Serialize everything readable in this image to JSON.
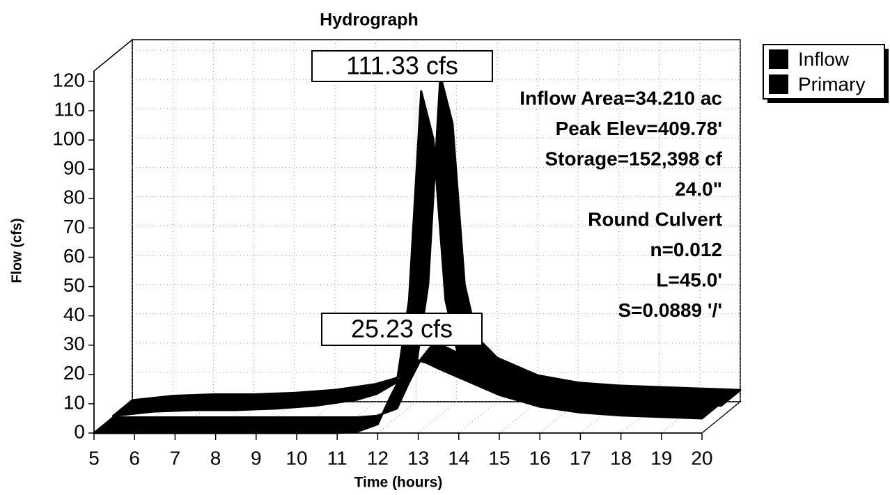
{
  "chart_data": {
    "type": "line3d",
    "title": "Hydrograph",
    "xlabel": "Time  (hours)",
    "ylabel": "Flow  (cfs)",
    "x": [
      5,
      6,
      7,
      8,
      9,
      10,
      11,
      11.5,
      12,
      12.3,
      12.6,
      12.9,
      13.2,
      13.5,
      14,
      15,
      16,
      17,
      18,
      19,
      20
    ],
    "series": [
      {
        "name": "Inflow",
        "color": "#000000",
        "values": [
          0.5,
          2,
          2.5,
          2.5,
          3,
          4,
          6,
          8,
          12,
          40,
          111.33,
          95,
          40,
          22,
          15,
          9,
          6.5,
          5.5,
          5,
          4.5,
          4
        ]
      },
      {
        "name": "Primary",
        "color": "#000000",
        "values": [
          0,
          0,
          0,
          0,
          0,
          0,
          0,
          0.5,
          3,
          12,
          20,
          25.23,
          24,
          22,
          19,
          13,
          9,
          7,
          6,
          5.5,
          5
        ]
      }
    ],
    "peak_labels": [
      "111.33 cfs",
      "25.23 cfs"
    ],
    "info": [
      "Inflow Area=34.210 ac",
      "Peak Elev=409.78'",
      "Storage=152,398 cf",
      "24.0\"",
      "Round Culvert",
      "n=0.012",
      "L=45.0'",
      "S=0.0889 '/'"
    ],
    "xlim": [
      5,
      20
    ],
    "xticks": [
      5,
      6,
      7,
      8,
      9,
      10,
      11,
      12,
      13,
      14,
      15,
      16,
      17,
      18,
      19,
      20
    ],
    "ylim": [
      0,
      120
    ],
    "yticks": [
      0,
      10,
      20,
      30,
      40,
      50,
      60,
      70,
      80,
      90,
      100,
      110,
      120
    ],
    "grid": true,
    "legend": "right"
  }
}
